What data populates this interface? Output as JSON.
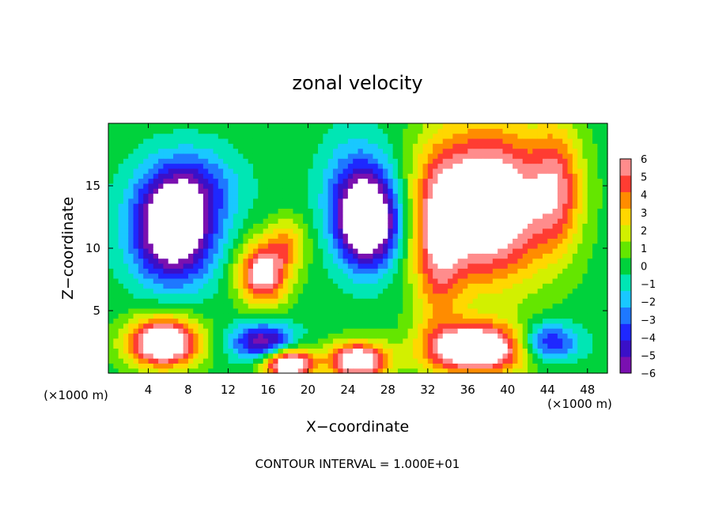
{
  "chart_data": {
    "type": "heatmap",
    "title": "zonal velocity",
    "xlabel": "X−coordinate",
    "ylabel": "Z−coordinate",
    "x_unit_left": "(×1000 m)",
    "x_unit_right": "(×1000 m)",
    "footer": "CONTOUR INTERVAL = 1.000E+01",
    "xlim": [
      0,
      50
    ],
    "ylim": [
      0,
      20
    ],
    "x_ticks": [
      4,
      8,
      12,
      16,
      20,
      24,
      28,
      32,
      36,
      40,
      44,
      48
    ],
    "y_ticks": [
      5,
      10,
      15
    ],
    "x_tick_labels": [
      "4",
      "8",
      "12",
      "16",
      "20",
      "24",
      "28",
      "32",
      "36",
      "40",
      "44",
      "48"
    ],
    "y_tick_labels": [
      "5",
      "10",
      "15"
    ],
    "colorbar": {
      "range": [
        -6,
        6
      ],
      "ticks": [
        6,
        5,
        4,
        3,
        2,
        1,
        0,
        -1,
        -2,
        -3,
        -4,
        -5,
        -6
      ],
      "tick_labels": [
        "6",
        "5",
        "4",
        "3",
        "2",
        "1",
        "0",
        "−1",
        "−2",
        "−3",
        "−4",
        "−5",
        "−6"
      ],
      "colors": [
        "#7a10b0",
        "#3a10c8",
        "#1e28ff",
        "#1e78ff",
        "#19c8ff",
        "#00e6b4",
        "#00d23c",
        "#64e600",
        "#d2f000",
        "#ffd700",
        "#ff8c00",
        "#ff3c32",
        "#ff8c8c"
      ]
    },
    "features": [
      {
        "x": 6.5,
        "z": 11.5,
        "value": -9,
        "sx": 4.0,
        "sz": 4.0
      },
      {
        "x": 8.5,
        "z": 15.0,
        "value": -3,
        "sx": 4.5,
        "sz": 3.0
      },
      {
        "x": 26.0,
        "z": 12.0,
        "value": -9,
        "sx": 3.0,
        "sz": 3.5
      },
      {
        "x": 25.0,
        "z": 15.0,
        "value": -3,
        "sx": 3.5,
        "sz": 4.0
      },
      {
        "x": 38.0,
        "z": 13.5,
        "value": 9,
        "sx": 6.0,
        "sz": 6.0
      },
      {
        "x": 33.0,
        "z": 10.0,
        "value": 4,
        "sx": 2.5,
        "sz": 7.0
      },
      {
        "x": 45.0,
        "z": 15.0,
        "value": 4,
        "sx": 2.5,
        "sz": 5.0
      },
      {
        "x": 15.5,
        "z": 8.0,
        "value": 7,
        "sx": 2.5,
        "sz": 2.5
      },
      {
        "x": 18.0,
        "z": 10.5,
        "value": 3,
        "sx": 2.0,
        "sz": 2.0
      },
      {
        "x": 5.5,
        "z": 2.5,
        "value": 9,
        "sx": 3.5,
        "sz": 2.0
      },
      {
        "x": 18.0,
        "z": 0.8,
        "value": 9,
        "sx": 2.5,
        "sz": 1.2
      },
      {
        "x": 25.0,
        "z": 1.0,
        "value": 8,
        "sx": 3.0,
        "sz": 1.5
      },
      {
        "x": 37.0,
        "z": 2.0,
        "value": 9,
        "sx": 5.0,
        "sz": 2.0
      },
      {
        "x": 15.5,
        "z": 2.5,
        "value": -6,
        "sx": 3.0,
        "sz": 1.5
      },
      {
        "x": 44.0,
        "z": 2.5,
        "value": -5,
        "sx": 3.0,
        "sz": 1.5
      }
    ]
  }
}
